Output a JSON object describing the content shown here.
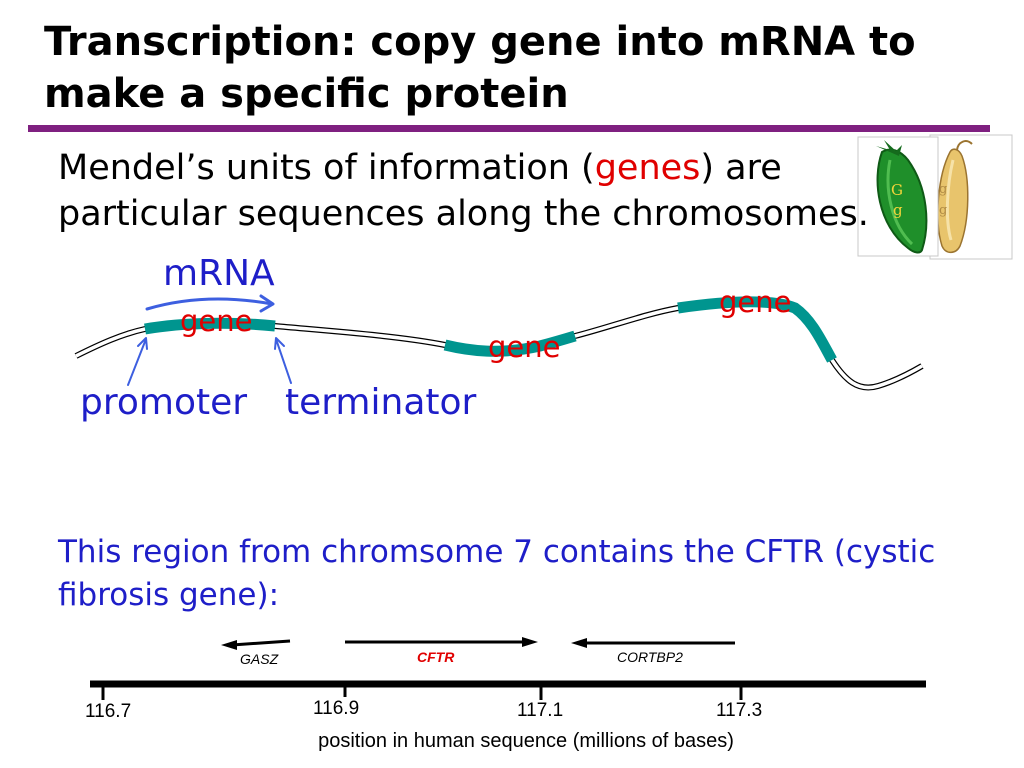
{
  "slide": {
    "title_lines": [
      "Transcription: copy gene into mRNA to",
      "make a specific protein"
    ],
    "intro": {
      "line1_before": "Mendel’s units of information (",
      "line1_highlight": "genes",
      "line1_after": ") are",
      "line2": "particular sequences along the chromosomes."
    },
    "pea_pods": {
      "green_pod_letters": [
        "G",
        "g"
      ],
      "yellow_pod_letters": [
        "g",
        "g"
      ]
    }
  },
  "gene_diagram": {
    "mrna_label": "mRNA",
    "gene_labels": [
      "gene",
      "gene",
      "gene"
    ],
    "promoter_label": "promoter",
    "terminator_label": "terminator"
  },
  "cftr_note": {
    "lines": [
      "This region from chromsome 7 contains the CFTR (cystic",
      "fibrosis gene):"
    ]
  },
  "genome_map": {
    "genes": [
      "GASZ",
      "CFTR",
      "CORTBP2"
    ],
    "ticks": [
      "116.7",
      "116.9",
      "117.1",
      "117.3"
    ],
    "axis_label": "position in human sequence (millions of bases)"
  },
  "colors": {
    "title_rule": "#7f2080",
    "gene_segment": "#00958f",
    "text_blue": "#1e1ec8",
    "highlight_red": "#e00000",
    "arrow_blue": "#3d5fe0",
    "green_pod": "#1f8f2a",
    "yellow_pod": "#e8c46c"
  }
}
